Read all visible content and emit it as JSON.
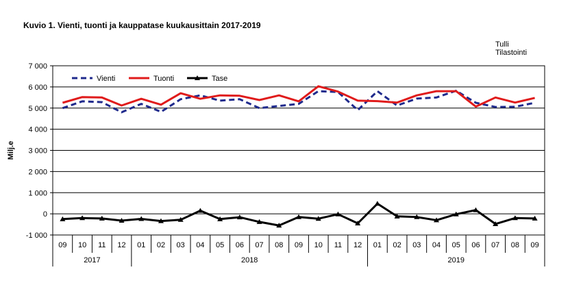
{
  "title": "Kuvio  1. Vienti, tuonti ja kauppatase kuukausittain 2017-2019",
  "source": [
    "Tulli",
    "Tilastointi"
  ],
  "chart_data": {
    "type": "line",
    "ylabel": "Milj.e",
    "ylim": [
      -1000,
      7000
    ],
    "yticks": [
      "-1 000",
      "0",
      "1 000",
      "2 000",
      "3 000",
      "4 000",
      "5 000",
      "6 000",
      "7 000"
    ],
    "grid": true,
    "legend_position": "top-left",
    "categories": [
      "09",
      "10",
      "11",
      "12",
      "01",
      "02",
      "03",
      "04",
      "05",
      "06",
      "07",
      "08",
      "09",
      "10",
      "11",
      "12",
      "01",
      "02",
      "03",
      "04",
      "05",
      "06",
      "07",
      "08",
      "09"
    ],
    "year_groups": [
      {
        "label": "2017",
        "count": 4
      },
      {
        "label": "2018",
        "count": 12
      },
      {
        "label": "2019",
        "count": 9
      }
    ],
    "series": [
      {
        "name": "Vienti",
        "color": "#1F2A8C",
        "style": "dashed",
        "values": [
          5000,
          5320,
          5280,
          4800,
          5200,
          4820,
          5420,
          5600,
          5350,
          5420,
          5000,
          5100,
          5200,
          5800,
          5760,
          4900,
          5800,
          5120,
          5450,
          5500,
          5820,
          5250,
          5050,
          5060,
          5250
        ]
      },
      {
        "name": "Tuonti",
        "color": "#E01B1B",
        "style": "solid",
        "values": [
          5250,
          5520,
          5500,
          5120,
          5440,
          5160,
          5700,
          5440,
          5600,
          5580,
          5380,
          5600,
          5320,
          6030,
          5780,
          5350,
          5330,
          5260,
          5600,
          5800,
          5800,
          5070,
          5500,
          5260,
          5480
        ]
      },
      {
        "name": "Tase",
        "color": "#000000",
        "style": "solid-marker",
        "values": [
          -250,
          -200,
          -220,
          -320,
          -240,
          -340,
          -280,
          150,
          -250,
          -160,
          -380,
          -550,
          -150,
          -230,
          -20,
          -450,
          480,
          -120,
          -150,
          -300,
          -20,
          180,
          -480,
          -200,
          -220
        ]
      }
    ]
  }
}
